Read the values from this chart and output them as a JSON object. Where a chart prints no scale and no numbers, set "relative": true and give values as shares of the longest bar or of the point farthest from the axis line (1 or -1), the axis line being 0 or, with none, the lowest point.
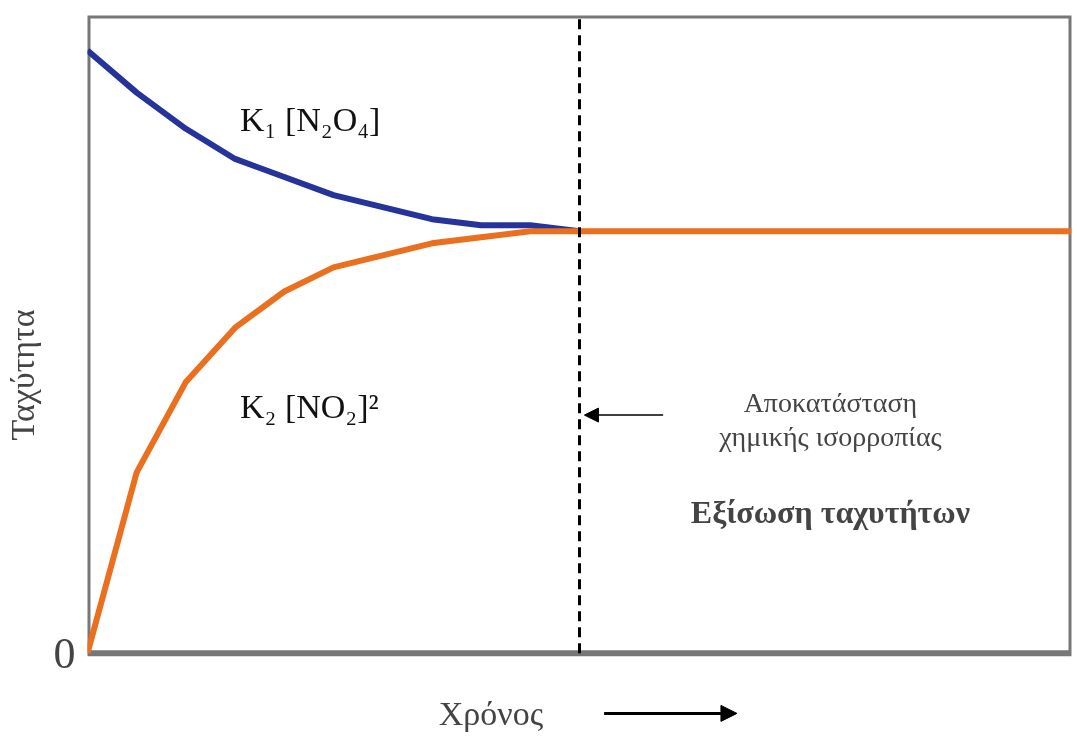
{
  "chart_data": {
    "type": "line",
    "relative": true,
    "xlabel": "Χρόνος",
    "ylabel": "Ταχύτητα",
    "categories": [
      null,
      null,
      null,
      null,
      null,
      null,
      null,
      null,
      null,
      null,
      null,
      null,
      null,
      null,
      null,
      null,
      null,
      null,
      null,
      null,
      null
    ],
    "series": [
      {
        "name": "K₁ [N₂O₄]",
        "color": "#25339a",
        "values": [
          1,
          0.93,
          0.87,
          0.82,
          0.79,
          0.76,
          0.74,
          0.72,
          0.71,
          0.71,
          0.7,
          null,
          null,
          null,
          null,
          null,
          null,
          null,
          null,
          null,
          null
        ]
      },
      {
        "name": "K₂ [NO₂]²",
        "color": "#ea6f1e",
        "values": [
          0,
          0.3,
          0.45,
          0.54,
          0.6,
          0.64,
          0.66,
          0.68,
          0.69,
          0.7,
          0.7,
          0.7,
          0.7,
          0.7,
          0.7,
          0.7,
          0.7,
          0.7,
          0.7,
          0.7,
          0.7
        ]
      }
    ],
    "annotations": [
      "0",
      "Αποκατάσταση\nχημικής ισορροπίας",
      "Εξίσωση ταχυτήτων"
    ],
    "line_style": "solid",
    "marker": "none"
  }
}
